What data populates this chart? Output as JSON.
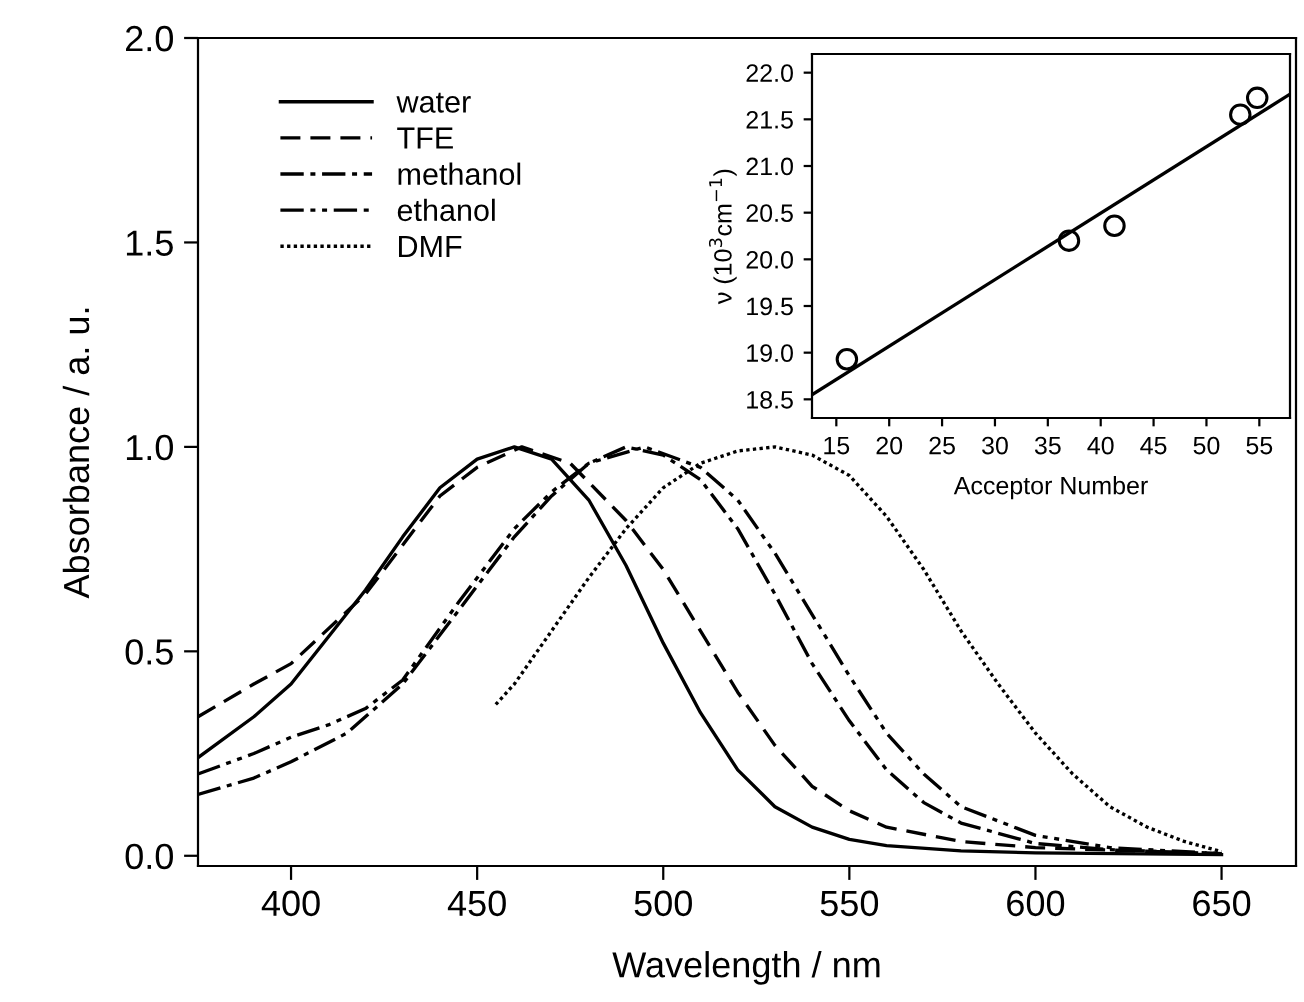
{
  "chart_data": [
    {
      "type": "line",
      "xlabel": "Wavelength / nm",
      "ylabel": "Absorbance / a. u.",
      "xlim": [
        375,
        670
      ],
      "ylim": [
        -0.025,
        2.0
      ],
      "xticks": [
        400,
        450,
        500,
        550,
        600,
        650
      ],
      "yticks": [
        {
          "value": 0,
          "label": "0.0"
        },
        0.5,
        {
          "value": 1,
          "label": "1.0"
        },
        1.5,
        {
          "value": 2,
          "label": "2.0"
        }
      ],
      "legend": "top left",
      "grid": false,
      "series": [
        {
          "name": "water",
          "color": "#000000",
          "line_style": "solid",
          "x": [
            375,
            390,
            400,
            420,
            430,
            440,
            450,
            460,
            470,
            480,
            490,
            500,
            510,
            520,
            530,
            540,
            550,
            560,
            580,
            600,
            650
          ],
          "values": [
            0.24,
            0.34,
            0.42,
            0.65,
            0.78,
            0.9,
            0.97,
            1.0,
            0.97,
            0.87,
            0.71,
            0.52,
            0.35,
            0.21,
            0.12,
            0.07,
            0.04,
            0.025,
            0.012,
            0.007,
            0.003
          ]
        },
        {
          "name": "TFE",
          "color": "#000000",
          "line_style": "dashed",
          "x": [
            375,
            390,
            400,
            420,
            440,
            450,
            462,
            475,
            490,
            500,
            510,
            520,
            530,
            540,
            550,
            560,
            580,
            600,
            650
          ],
          "values": [
            0.34,
            0.42,
            0.47,
            0.64,
            0.88,
            0.95,
            1.0,
            0.96,
            0.82,
            0.7,
            0.55,
            0.4,
            0.27,
            0.17,
            0.11,
            0.07,
            0.035,
            0.02,
            0.005
          ]
        },
        {
          "name": "methanol",
          "color": "#000000",
          "line_style": "dashdot",
          "x": [
            375,
            390,
            400,
            415,
            430,
            445,
            460,
            470,
            480,
            490,
            500,
            510,
            520,
            530,
            540,
            550,
            560,
            570,
            580,
            600,
            620,
            650
          ],
          "values": [
            0.15,
            0.19,
            0.23,
            0.3,
            0.42,
            0.6,
            0.78,
            0.88,
            0.96,
            1.0,
            0.98,
            0.92,
            0.8,
            0.64,
            0.47,
            0.33,
            0.21,
            0.13,
            0.08,
            0.03,
            0.015,
            0.005
          ]
        },
        {
          "name": "ethanol",
          "color": "#000000",
          "line_style": "dashdotdot",
          "x": [
            375,
            390,
            400,
            410,
            420,
            430,
            445,
            460,
            470,
            480,
            495,
            510,
            520,
            530,
            540,
            550,
            560,
            570,
            580,
            600,
            620,
            650
          ],
          "values": [
            0.2,
            0.25,
            0.29,
            0.32,
            0.36,
            0.43,
            0.62,
            0.8,
            0.89,
            0.96,
            1.0,
            0.95,
            0.87,
            0.74,
            0.59,
            0.44,
            0.3,
            0.2,
            0.12,
            0.05,
            0.02,
            0.005
          ]
        },
        {
          "name": "DMF",
          "color": "#000000",
          "line_style": "dotted",
          "x": [
            455,
            460,
            470,
            480,
            490,
            500,
            510,
            520,
            530,
            540,
            550,
            560,
            570,
            580,
            590,
            600,
            610,
            620,
            630,
            640,
            650
          ],
          "values": [
            0.37,
            0.42,
            0.55,
            0.68,
            0.8,
            0.9,
            0.96,
            0.99,
            1.0,
            0.98,
            0.93,
            0.83,
            0.7,
            0.55,
            0.42,
            0.3,
            0.2,
            0.12,
            0.07,
            0.035,
            0.01
          ]
        }
      ]
    },
    {
      "type": "scatter",
      "xlabel": "Acceptor Number",
      "ylabel": "ν (10$^{3}$cm$^{−1}$)",
      "xlim": [
        12.7,
        57.9
      ],
      "ylim": [
        18.3,
        22.2
      ],
      "xticks": [
        15,
        20,
        25,
        30,
        35,
        40,
        45,
        50,
        55
      ],
      "yticks": [
        18.5,
        {
          "value": 19,
          "label": "19.0"
        },
        19.5,
        {
          "value": 20,
          "label": "20.0"
        },
        20.5,
        {
          "value": 21,
          "label": "21.0"
        },
        21.5,
        {
          "value": 22,
          "label": "22.0"
        }
      ],
      "grid": false,
      "series": [
        {
          "color": "#000000",
          "marker": "circle",
          "x": [
            16,
            37,
            41.3,
            53.2,
            54.8
          ],
          "values": [
            18.93,
            20.2,
            20.36,
            21.55,
            21.73
          ]
        },
        {
          "type": "line",
          "color": "#000000",
          "line_style": "solid",
          "marker": "none",
          "x": [
            12.7,
            57.9
          ],
          "values": [
            18.55,
            21.77
          ]
        }
      ]
    }
  ]
}
